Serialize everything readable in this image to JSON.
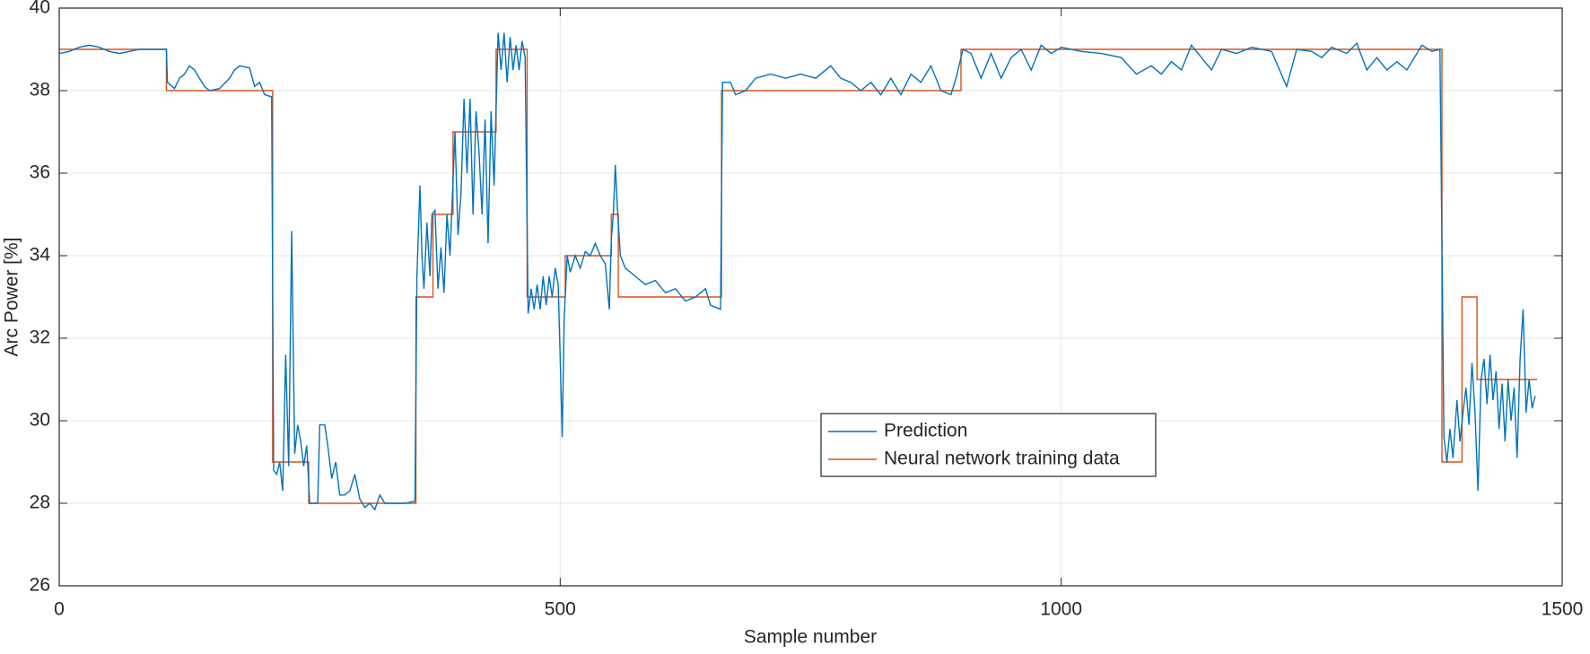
{
  "chart_data": {
    "type": "line",
    "xlabel": "Sample number",
    "ylabel": "Arc Power [%]",
    "xlim": [
      0,
      1500
    ],
    "ylim": [
      26,
      40
    ],
    "xticks": [
      0,
      500,
      1000,
      1500
    ],
    "yticks": [
      26,
      28,
      30,
      32,
      34,
      36,
      38,
      40
    ],
    "grid": true,
    "legend": "center",
    "series": [
      {
        "name": "Prediction",
        "color": "#0072BD",
        "x": [
          0,
          10,
          20,
          30,
          40,
          50,
          60,
          70,
          80,
          90,
          100,
          107,
          108,
          115,
          120,
          125,
          130,
          135,
          140,
          145,
          150,
          160,
          170,
          175,
          180,
          190,
          195,
          200,
          205,
          212,
          214,
          217,
          220,
          223,
          226,
          229,
          232,
          235,
          238,
          241,
          244,
          247,
          250,
          258,
          260,
          265,
          268,
          272,
          276,
          280,
          285,
          290,
          295,
          300,
          305,
          310,
          315,
          320,
          325,
          335,
          345,
          355,
          357,
          360,
          362,
          364,
          367,
          370,
          372,
          375,
          378,
          381,
          384,
          387,
          390,
          395,
          398,
          401,
          404,
          407,
          410,
          413,
          416,
          419,
          422,
          425,
          428,
          431,
          434,
          438,
          441,
          444,
          447,
          450,
          453,
          456,
          459,
          462,
          465,
          468,
          471,
          474,
          477,
          480,
          483,
          486,
          489,
          492,
          495,
          498,
          500,
          502,
          504,
          507,
          510,
          515,
          520,
          525,
          530,
          535,
          540,
          545,
          549,
          551,
          553,
          555,
          557,
          560,
          565,
          575,
          585,
          595,
          605,
          615,
          625,
          635,
          645,
          650,
          660,
          662,
          670,
          675,
          685,
          695,
          710,
          725,
          740,
          755,
          770,
          780,
          790,
          800,
          810,
          820,
          830,
          840,
          850,
          860,
          870,
          880,
          890,
          895,
          902,
          910,
          920,
          930,
          940,
          950,
          960,
          970,
          980,
          990,
          1000,
          1020,
          1040,
          1060,
          1075,
          1090,
          1100,
          1110,
          1120,
          1130,
          1140,
          1150,
          1160,
          1175,
          1190,
          1210,
          1225,
          1235,
          1250,
          1260,
          1270,
          1285,
          1295,
          1305,
          1315,
          1325,
          1335,
          1345,
          1360,
          1370,
          1378,
          1382,
          1385,
          1388,
          1391,
          1395,
          1398,
          1401,
          1404,
          1407,
          1410,
          1413,
          1416,
          1419,
          1422,
          1425,
          1428,
          1431,
          1434,
          1437,
          1440,
          1443,
          1446,
          1449,
          1452,
          1455,
          1458,
          1461,
          1464,
          1467,
          1470,
          1473
        ],
        "values": [
          38.9,
          38.95,
          39.05,
          39.1,
          39.05,
          38.95,
          38.9,
          38.95,
          39,
          39,
          39,
          39,
          38.2,
          38.05,
          38.3,
          38.4,
          38.6,
          38.5,
          38.3,
          38.1,
          38,
          38.05,
          38.3,
          38.5,
          38.6,
          38.55,
          38.1,
          38.2,
          37.9,
          37.85,
          28.8,
          28.7,
          29.0,
          28.3,
          31.6,
          28.9,
          34.6,
          29.2,
          29.9,
          29.5,
          28.9,
          29.4,
          28.0,
          28.0,
          29.9,
          29.9,
          29.4,
          28.6,
          29.0,
          28.2,
          28.2,
          28.3,
          28.7,
          28.1,
          27.9,
          28.0,
          27.85,
          28.2,
          28.0,
          28.0,
          28.0,
          28.05,
          33.5,
          35.7,
          34.0,
          33.2,
          34.8,
          33.5,
          35.0,
          35.1,
          33.2,
          34.2,
          33.1,
          35.0,
          34.0,
          37.0,
          34.5,
          35.5,
          37.8,
          36.0,
          37.8,
          35.0,
          37.5,
          36.5,
          35.0,
          37.3,
          34.3,
          37.5,
          35.7,
          39.4,
          38.5,
          39.4,
          38.2,
          39.3,
          38.5,
          39.1,
          38.5,
          39.2,
          38.8,
          32.6,
          33.2,
          32.7,
          33.3,
          32.7,
          33.5,
          32.8,
          33.5,
          33.0,
          33.7,
          33.3,
          31.5,
          29.6,
          32.5,
          34.0,
          33.6,
          34.0,
          33.7,
          34.1,
          34.0,
          34.3,
          34.0,
          33.8,
          32.7,
          34.4,
          35.0,
          36.2,
          35.2,
          34.0,
          33.7,
          33.5,
          33.3,
          33.4,
          33.1,
          33.2,
          32.9,
          33.0,
          33.2,
          32.8,
          32.7,
          38.2,
          38.2,
          37.9,
          38.0,
          38.3,
          38.4,
          38.3,
          38.4,
          38.3,
          38.6,
          38.3,
          38.2,
          38.0,
          38.2,
          37.9,
          38.3,
          37.9,
          38.4,
          38.2,
          38.6,
          38.0,
          37.9,
          38.3,
          39.0,
          38.9,
          38.3,
          38.9,
          38.3,
          38.8,
          39.0,
          38.5,
          39.1,
          38.9,
          39.05,
          38.95,
          38.9,
          38.8,
          38.4,
          38.6,
          38.4,
          38.7,
          38.5,
          39.1,
          38.8,
          38.5,
          39.0,
          38.9,
          39.05,
          38.95,
          38.1,
          39.0,
          38.95,
          38.8,
          39.05,
          38.9,
          39.15,
          38.5,
          38.8,
          38.5,
          38.7,
          38.5,
          39.1,
          38.95,
          39.0,
          29.6,
          29.0,
          29.8,
          29.1,
          30.5,
          29.5,
          30.2,
          30.8,
          29.9,
          31.4,
          30.2,
          28.3,
          31.0,
          31.5,
          30.4,
          31.6,
          30.5,
          31.2,
          29.8,
          30.9,
          29.5,
          31.0,
          30.0,
          30.8,
          29.1,
          31.5,
          32.7,
          30.2,
          31.0,
          30.3,
          30.6
        ]
      },
      {
        "name": "Neural network training data",
        "color": "#D95319",
        "x": [
          0,
          107,
          107,
          213,
          213,
          249,
          249,
          356,
          356,
          373,
          373,
          393,
          393,
          436,
          436,
          467,
          467,
          505,
          505,
          551,
          551,
          558,
          558,
          661,
          661,
          900,
          900,
          1380,
          1380,
          1400,
          1400,
          1415,
          1415,
          1475
        ],
        "values": [
          39,
          39,
          38,
          38,
          29,
          29,
          28,
          28,
          33,
          33,
          35,
          35,
          37,
          37,
          39,
          39,
          33,
          33,
          34,
          34,
          35,
          35,
          33,
          33,
          38,
          38,
          39,
          39,
          29,
          29,
          33,
          33,
          31,
          31
        ]
      }
    ]
  }
}
